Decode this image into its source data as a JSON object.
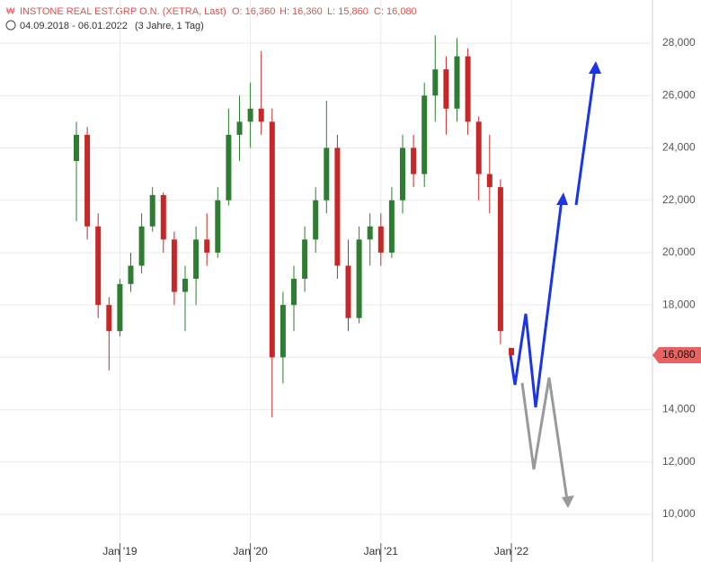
{
  "header": {
    "title": "INSTONE REAL EST.GRP O.N. (XETRA, Last)",
    "open": "O: 16,360",
    "high": "H: 16,360",
    "low": "L: 15,860",
    "close": "C: 16,080",
    "range": "04.09.2018 - 06.01.2022",
    "period": "(3 Jahre, 1 Tag)"
  },
  "chart_data": {
    "type": "candlestick",
    "categories": [
      null,
      null,
      null,
      null,
      "Jan '19",
      null,
      null,
      null,
      null,
      null,
      null,
      null,
      null,
      null,
      null,
      null,
      "Jan '20",
      null,
      null,
      null,
      null,
      null,
      null,
      null,
      null,
      null,
      null,
      null,
      "Jan '21",
      null,
      null,
      null,
      null,
      null,
      null,
      null,
      null,
      null,
      null,
      null,
      "Jan '22"
    ],
    "series": [
      {
        "up_color": "#2e7d32",
        "down_color": "#c62828",
        "open": [
          23500,
          24500,
          21000,
          18000,
          17000,
          18800,
          19500,
          21000,
          22200,
          20500,
          18500,
          19000,
          20500,
          20000,
          22000,
          24500,
          25000,
          25500,
          25000,
          16000,
          18000,
          19000,
          20500,
          22000,
          24000,
          19500,
          17500,
          20500,
          21000,
          20000,
          22000,
          24000,
          23000,
          26000,
          27000,
          25500,
          27500,
          25000,
          23000,
          22500,
          16360
        ],
        "high": [
          25000,
          24800,
          21500,
          18300,
          19000,
          20000,
          21500,
          22500,
          22300,
          20800,
          19500,
          21000,
          21500,
          22500,
          25500,
          26000,
          26500,
          27700,
          25500,
          18500,
          19500,
          21000,
          22500,
          25800,
          24500,
          20500,
          21000,
          21500,
          21500,
          22500,
          24500,
          24500,
          26500,
          28300,
          27500,
          28200,
          27800,
          25200,
          24500,
          22800,
          16360
        ],
        "low": [
          21200,
          20500,
          17500,
          15500,
          16800,
          18500,
          19200,
          20800,
          20000,
          18000,
          17000,
          18000,
          19500,
          19800,
          21800,
          23500,
          24000,
          24500,
          13700,
          15000,
          17000,
          18500,
          20000,
          21500,
          19000,
          17000,
          17300,
          19500,
          19500,
          19800,
          21500,
          22500,
          22500,
          25000,
          24500,
          25000,
          24500,
          22000,
          21500,
          16500,
          15860
        ],
        "close": [
          24500,
          21000,
          18000,
          17000,
          18800,
          19500,
          21000,
          22200,
          20500,
          18500,
          19000,
          20500,
          20000,
          22000,
          24500,
          25000,
          25500,
          25000,
          16000,
          18000,
          19000,
          20500,
          22000,
          24000,
          19500,
          17500,
          20500,
          21000,
          20000,
          22000,
          24000,
          23000,
          26000,
          27000,
          25500,
          27500,
          25000,
          23000,
          22500,
          17000,
          16080
        ]
      }
    ],
    "last_price": {
      "value": 16080,
      "label": "16,080"
    },
    "ylim": [
      8180,
      29650
    ],
    "yticks": [
      {
        "value": 10000,
        "label": "10,000"
      },
      {
        "value": 12000,
        "label": "12,000"
      },
      {
        "value": 14000,
        "label": "14,000"
      },
      {
        "value": 16000,
        "label": "16,000"
      },
      {
        "value": 18000,
        "label": "18,000"
      },
      {
        "value": 20000,
        "label": "20,000"
      },
      {
        "value": 22000,
        "label": "22,000"
      },
      {
        "value": 24000,
        "label": "24,000"
      },
      {
        "value": 26000,
        "label": "26,000"
      },
      {
        "value": 28000,
        "label": "28,000"
      }
    ],
    "grid": true
  }
}
